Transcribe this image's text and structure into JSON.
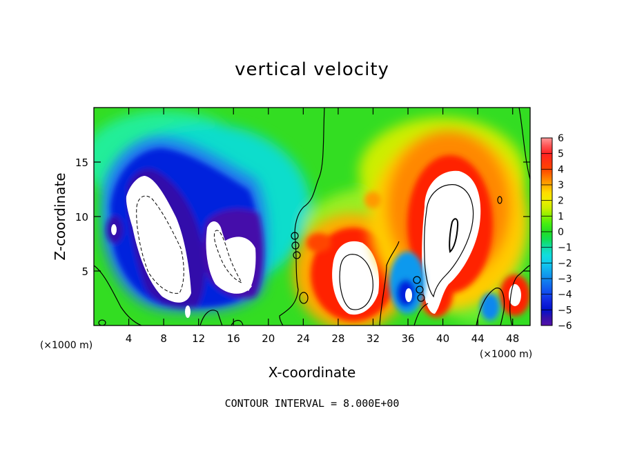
{
  "chart_data": {
    "type": "heatmap",
    "title": "vertical velocity",
    "xlabel": "X-coordinate",
    "ylabel": "Z-coordinate",
    "x_unit_left": "(×1000 m)",
    "x_unit_right": "(×1000 m)",
    "xlim": [
      0,
      50
    ],
    "ylim": [
      0,
      20
    ],
    "x_ticks": [
      4,
      8,
      12,
      16,
      20,
      24,
      28,
      32,
      36,
      40,
      44,
      48
    ],
    "y_ticks": [
      5,
      10,
      15
    ],
    "colorbar": {
      "levels": [
        6,
        5,
        4,
        3,
        2,
        1,
        0,
        -1,
        -2,
        -3,
        -4,
        -5,
        -6
      ],
      "range": [
        -6,
        6
      ]
    },
    "features": [
      {
        "kind": "downdraft",
        "cx": 9.0,
        "cz": 8.0,
        "peak": "below -6"
      },
      {
        "kind": "downdraft",
        "cx": 16.0,
        "cz": 6.0,
        "peak": "below -6"
      },
      {
        "kind": "downdraft",
        "cx": 2.2,
        "cz": 9.0,
        "peak": "below -6"
      },
      {
        "kind": "updraft",
        "cx": 30.0,
        "cz": 5.0,
        "peak": "above 6"
      },
      {
        "kind": "updraft",
        "cx": 40.5,
        "cz": 8.5,
        "peak": "above 6"
      },
      {
        "kind": "updraft",
        "cx": 48.0,
        "cz": 3.0,
        "peak": "above 6"
      },
      {
        "kind": "downdraft",
        "cx": 36.0,
        "cz": 3.0,
        "peak": "about -5"
      }
    ],
    "footer": "CONTOUR INTERVAL = 8.000E+00"
  }
}
